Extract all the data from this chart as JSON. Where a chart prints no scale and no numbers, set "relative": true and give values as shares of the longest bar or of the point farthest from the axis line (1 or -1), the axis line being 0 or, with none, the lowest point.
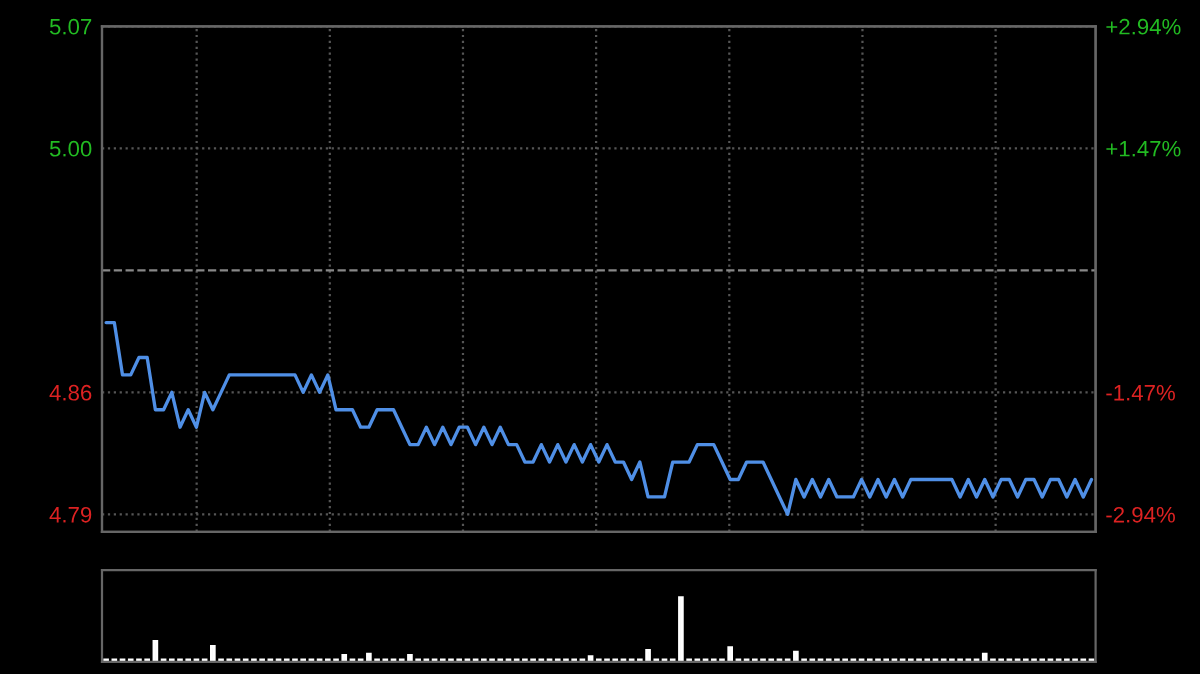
{
  "chart_data": [
    {
      "type": "line",
      "categories": [
        null,
        null,
        null,
        null,
        null,
        null,
        null,
        null,
        null,
        null,
        null,
        null,
        null,
        null,
        null,
        null,
        null,
        null,
        null,
        null,
        null,
        null,
        null,
        null,
        null,
        null,
        null,
        null,
        null,
        null,
        null,
        null,
        null,
        null,
        null,
        null,
        null,
        null,
        null,
        null,
        null,
        null,
        null,
        null,
        null,
        null,
        null,
        null,
        null,
        null,
        null,
        null,
        null,
        null,
        null,
        null,
        null,
        null,
        null,
        null,
        null,
        null,
        null,
        null,
        null,
        null,
        null,
        null,
        null,
        null,
        null,
        null,
        null,
        null,
        null,
        null,
        null,
        null,
        null,
        null,
        null,
        null,
        null,
        null,
        null,
        null,
        null,
        null,
        null,
        null,
        null,
        null,
        null,
        null,
        null,
        null,
        null,
        null,
        null,
        null,
        null,
        null,
        null,
        null,
        null,
        null,
        null,
        null,
        null,
        null,
        null,
        null,
        null,
        null,
        null,
        null,
        null,
        null,
        null,
        null,
        null
      ],
      "series": [
        {
          "color": "#4f8fe6",
          "values": [
            4.9,
            4.9,
            4.87,
            4.87,
            4.88,
            4.88,
            4.85,
            4.85,
            4.86,
            4.84,
            4.85,
            4.84,
            4.86,
            4.85,
            4.86,
            4.87,
            4.87,
            4.87,
            4.87,
            4.87,
            4.87,
            4.87,
            4.87,
            4.87,
            4.86,
            4.87,
            4.86,
            4.87,
            4.85,
            4.85,
            4.85,
            4.84,
            4.84,
            4.85,
            4.85,
            4.85,
            4.84,
            4.83,
            4.83,
            4.84,
            4.83,
            4.84,
            4.83,
            4.84,
            4.84,
            4.83,
            4.84,
            4.83,
            4.84,
            4.83,
            4.83,
            4.82,
            4.82,
            4.83,
            4.82,
            4.83,
            4.82,
            4.83,
            4.82,
            4.83,
            4.82,
            4.83,
            4.82,
            4.82,
            4.81,
            4.82,
            4.8,
            4.8,
            4.8,
            4.82,
            4.82,
            4.82,
            4.83,
            4.83,
            4.83,
            4.82,
            4.81,
            4.81,
            4.82,
            4.82,
            4.82,
            4.81,
            4.8,
            4.79,
            4.81,
            4.8,
            4.81,
            4.8,
            4.81,
            4.8,
            4.8,
            4.8,
            4.81,
            4.8,
            4.81,
            4.8,
            4.81,
            4.8,
            4.81,
            4.81,
            4.81,
            4.81,
            4.81,
            4.81,
            4.8,
            4.81,
            4.8,
            4.81,
            4.8,
            4.81,
            4.81,
            4.8,
            4.81,
            4.81,
            4.8,
            4.81,
            4.81,
            4.8,
            4.81,
            4.8,
            4.81
          ]
        }
      ],
      "ylim": [
        4.78,
        5.07
      ],
      "yticks": [
        4.79,
        4.86,
        {
          "value": 5.0,
          "label": "5.00"
        },
        5.07
      ],
      "y2lim": [
        -3.15,
        2.94
      ],
      "y2ticks": [
        {
          "value": -2.94,
          "label": "-2.94%"
        },
        {
          "value": -1.47,
          "label": "-1.47%"
        },
        {
          "value": 1.47,
          "label": "+1.47%"
        },
        {
          "value": 2.94,
          "label": "+2.94%"
        }
      ],
      "ref_lines": [
        {
          "axis": "y",
          "value": 4.93,
          "label": null,
          "color": "#888888",
          "line_style": "dashed"
        }
      ],
      "grid": true,
      "tick_labels": "y",
      "line_style": "solid",
      "marker": "none",
      "legend": false
    },
    {
      "type": "bar",
      "relative": true,
      "color": "#cccccc",
      "tick_labels": false,
      "categories": [
        null,
        null,
        null,
        null,
        null,
        null,
        null,
        null,
        null,
        null,
        null,
        null,
        null,
        null,
        null,
        null,
        null,
        null,
        null,
        null,
        null,
        null,
        null,
        null,
        null,
        null,
        null,
        null,
        null,
        null,
        null,
        null,
        null,
        null,
        null,
        null,
        null,
        null,
        null,
        null,
        null,
        null,
        null,
        null,
        null,
        null,
        null,
        null,
        null,
        null,
        null,
        null,
        null,
        null,
        null,
        null,
        null,
        null,
        null,
        null,
        null,
        null,
        null,
        null,
        null,
        null,
        null,
        null,
        null,
        null,
        null,
        null,
        null,
        null,
        null,
        null,
        null,
        null,
        null,
        null,
        null,
        null,
        null,
        null,
        null,
        null,
        null,
        null,
        null,
        null,
        null,
        null,
        null,
        null,
        null,
        null,
        null,
        null,
        null,
        null,
        null,
        null,
        null,
        null,
        null,
        null,
        null,
        null,
        null,
        null,
        null,
        null,
        null,
        null,
        null,
        null,
        null,
        null,
        null,
        null,
        null
      ],
      "values": [
        0.03,
        0.03,
        0.03,
        0.03,
        0.03,
        0.03,
        0.32,
        0.03,
        0.03,
        0.03,
        0.03,
        0.03,
        0.03,
        0.24,
        0.03,
        0.03,
        0.03,
        0.03,
        0.03,
        0.03,
        0.03,
        0.03,
        0.03,
        0.03,
        0.03,
        0.03,
        0.03,
        0.03,
        0.03,
        0.1,
        0.03,
        0.03,
        0.12,
        0.03,
        0.03,
        0.03,
        0.03,
        0.1,
        0.03,
        0.03,
        0.03,
        0.03,
        0.03,
        0.03,
        0.03,
        0.03,
        0.03,
        0.03,
        0.03,
        0.03,
        0.03,
        0.03,
        0.03,
        0.03,
        0.03,
        0.03,
        0.03,
        0.03,
        0.03,
        0.08,
        0.03,
        0.03,
        0.03,
        0.03,
        0.03,
        0.03,
        0.18,
        0.03,
        0.03,
        0.03,
        1,
        0.03,
        0.03,
        0.03,
        0.03,
        0.03,
        0.22,
        0.03,
        0.03,
        0.03,
        0.03,
        0.03,
        0.03,
        0.03,
        0.15,
        0.03,
        0.03,
        0.03,
        0.03,
        0.03,
        0.03,
        0.03,
        0.03,
        0.03,
        0.03,
        0.03,
        0.03,
        0.03,
        0.03,
        0.03,
        0.03,
        0.03,
        0.03,
        0.03,
        0.03,
        0.03,
        0.03,
        0.12,
        0.03,
        0.03,
        0.03,
        0.03,
        0.03,
        0.03,
        0.03,
        0.03,
        0.03,
        0.03,
        0.03,
        0.03,
        0.03
      ]
    }
  ]
}
